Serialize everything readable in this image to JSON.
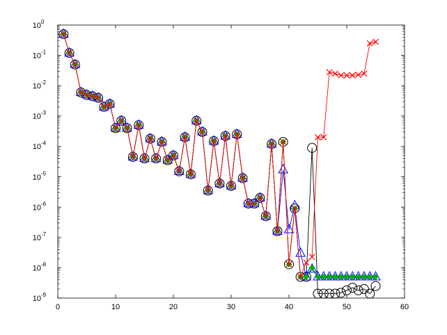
{
  "chart_data": {
    "type": "line",
    "yscale": "log",
    "xlim": [
      0,
      60
    ],
    "ylim": [
      1e-09,
      1
    ],
    "x_ticks": [
      0,
      10,
      20,
      30,
      40,
      50,
      60
    ],
    "x_tick_labels": [
      "0",
      "10",
      "20",
      "30",
      "40",
      "50",
      "60"
    ],
    "y_ticks": [
      1e-09,
      1e-08,
      1e-07,
      1e-06,
      1e-05,
      0.0001,
      0.001,
      0.01,
      0.1,
      1
    ],
    "y_tick_labels": [
      {
        "base": "10",
        "exp": "-9"
      },
      {
        "base": "10",
        "exp": "-8"
      },
      {
        "base": "10",
        "exp": "-7"
      },
      {
        "base": "10",
        "exp": "-6"
      },
      {
        "base": "10",
        "exp": "-5"
      },
      {
        "base": "10",
        "exp": "-4"
      },
      {
        "base": "10",
        "exp": "-3"
      },
      {
        "base": "10",
        "exp": "-2"
      },
      {
        "base": "10",
        "exp": "-1"
      },
      {
        "base": "10",
        "exp": "0"
      }
    ],
    "grid": false,
    "legend": "none",
    "series": [
      {
        "marker": "circle",
        "color": "#000000",
        "points": [
          [
            1,
            0.5
          ],
          [
            2,
            0.12
          ],
          [
            3,
            0.05
          ],
          [
            4,
            0.006
          ],
          [
            5,
            0.005
          ],
          [
            6,
            0.0045
          ],
          [
            7,
            0.004
          ],
          [
            8,
            0.002
          ],
          [
            9,
            0.0025
          ],
          [
            10,
            0.0004
          ],
          [
            11,
            0.0007
          ],
          [
            12,
            0.0004
          ],
          [
            13,
            4.5e-05
          ],
          [
            14,
            0.0005
          ],
          [
            15,
            4e-05
          ],
          [
            16,
            0.00018
          ],
          [
            17,
            4e-05
          ],
          [
            18,
            0.00014
          ],
          [
            19,
            3.5e-05
          ],
          [
            20,
            5e-05
          ],
          [
            21,
            1.5e-05
          ],
          [
            22,
            0.0002
          ],
          [
            23,
            1.2e-05
          ],
          [
            24,
            0.0007
          ],
          [
            25,
            0.0003
          ],
          [
            26,
            3.5e-06
          ],
          [
            27,
            0.00015
          ],
          [
            28,
            6e-06
          ],
          [
            29,
            0.00022
          ],
          [
            30,
            5e-06
          ],
          [
            31,
            0.00025
          ],
          [
            32,
            9e-06
          ],
          [
            33,
            1.3e-06
          ],
          [
            34,
            1.3e-06
          ],
          [
            35,
            2e-06
          ],
          [
            36,
            5e-07
          ],
          [
            37,
            0.00012
          ],
          [
            38,
            1.6e-07
          ],
          [
            39,
            0.00014
          ],
          [
            40,
            1.3e-08
          ],
          [
            41,
            9e-07
          ],
          [
            42,
            5e-09
          ],
          [
            43,
            5e-09
          ],
          [
            44,
            9e-05
          ],
          [
            45,
            1.4e-09
          ],
          [
            46,
            1.4e-09
          ],
          [
            47,
            1.4e-09
          ],
          [
            48,
            1.4e-09
          ],
          [
            49,
            1.5e-09
          ],
          [
            50,
            1.8e-09
          ],
          [
            51,
            2.2e-09
          ],
          [
            52,
            1.8e-09
          ],
          [
            53,
            2e-09
          ],
          [
            54,
            1.4e-09
          ],
          [
            55,
            2.5e-09
          ]
        ]
      },
      {
        "marker": "triangle",
        "color": "#0000ff",
        "points": [
          [
            1,
            0.5
          ],
          [
            2,
            0.12
          ],
          [
            3,
            0.05
          ],
          [
            4,
            0.006
          ],
          [
            5,
            0.005
          ],
          [
            6,
            0.0045
          ],
          [
            7,
            0.004
          ],
          [
            8,
            0.002
          ],
          [
            9,
            0.0025
          ],
          [
            10,
            0.0004
          ],
          [
            11,
            0.0007
          ],
          [
            12,
            0.0004
          ],
          [
            13,
            4.5e-05
          ],
          [
            14,
            0.0005
          ],
          [
            15,
            4e-05
          ],
          [
            16,
            0.00018
          ],
          [
            17,
            4e-05
          ],
          [
            18,
            0.00014
          ],
          [
            19,
            3.5e-05
          ],
          [
            20,
            5e-05
          ],
          [
            21,
            1.5e-05
          ],
          [
            22,
            0.0002
          ],
          [
            23,
            1.2e-05
          ],
          [
            24,
            0.0007
          ],
          [
            25,
            0.0003
          ],
          [
            26,
            3.5e-06
          ],
          [
            27,
            0.00015
          ],
          [
            28,
            6e-06
          ],
          [
            29,
            0.00022
          ],
          [
            30,
            5e-06
          ],
          [
            31,
            0.00025
          ],
          [
            32,
            9e-06
          ],
          [
            33,
            1.3e-06
          ],
          [
            34,
            1.3e-06
          ],
          [
            35,
            2e-06
          ],
          [
            36,
            5e-07
          ],
          [
            37,
            0.00012
          ],
          [
            38,
            1.6e-07
          ],
          [
            39,
            1.7e-05
          ],
          [
            40,
            1.8e-07
          ],
          [
            41,
            1.1e-06
          ],
          [
            42,
            3e-08
          ],
          [
            43,
            5e-09
          ],
          [
            44,
            9e-09
          ],
          [
            45,
            5e-09
          ],
          [
            46,
            5e-09
          ],
          [
            47,
            5e-09
          ],
          [
            48,
            5e-09
          ],
          [
            49,
            5e-09
          ],
          [
            50,
            5e-09
          ],
          [
            51,
            5e-09
          ],
          [
            52,
            5e-09
          ],
          [
            53,
            5e-09
          ],
          [
            54,
            5e-09
          ],
          [
            55,
            5e-09
          ]
        ]
      },
      {
        "marker": "diamond",
        "color": "#00b000",
        "points": [
          [
            1,
            0.5
          ],
          [
            2,
            0.12
          ],
          [
            3,
            0.05
          ],
          [
            4,
            0.006
          ],
          [
            5,
            0.005
          ],
          [
            6,
            0.0045
          ],
          [
            7,
            0.004
          ],
          [
            8,
            0.002
          ],
          [
            9,
            0.0025
          ],
          [
            10,
            0.0004
          ],
          [
            11,
            0.0007
          ],
          [
            12,
            0.0004
          ],
          [
            13,
            4.5e-05
          ],
          [
            14,
            0.0005
          ],
          [
            15,
            4e-05
          ],
          [
            16,
            0.00018
          ],
          [
            17,
            4e-05
          ],
          [
            18,
            0.00014
          ],
          [
            19,
            3.5e-05
          ],
          [
            20,
            5e-05
          ],
          [
            21,
            1.5e-05
          ],
          [
            22,
            0.0002
          ],
          [
            23,
            1.2e-05
          ],
          [
            24,
            0.0007
          ],
          [
            25,
            0.0003
          ],
          [
            26,
            3.5e-06
          ],
          [
            27,
            0.00015
          ],
          [
            28,
            6e-06
          ],
          [
            29,
            0.00022
          ],
          [
            30,
            5e-06
          ],
          [
            31,
            0.00025
          ],
          [
            32,
            9e-06
          ],
          [
            33,
            1.3e-06
          ],
          [
            34,
            1.3e-06
          ],
          [
            35,
            2e-06
          ],
          [
            36,
            5e-07
          ],
          [
            37,
            0.00012
          ],
          [
            38,
            1.6e-07
          ],
          [
            39,
            0.00014
          ],
          [
            40,
            1.3e-08
          ],
          [
            41,
            9e-07
          ],
          [
            42,
            5e-09
          ],
          [
            43,
            5e-09
          ],
          [
            44,
            1e-08
          ],
          [
            45,
            5e-09
          ],
          [
            46,
            5e-09
          ],
          [
            47,
            5e-09
          ],
          [
            48,
            5e-09
          ],
          [
            49,
            5e-09
          ],
          [
            50,
            5e-09
          ],
          [
            51,
            5e-09
          ],
          [
            52,
            5e-09
          ],
          [
            53,
            5e-09
          ],
          [
            54,
            5e-09
          ],
          [
            55,
            5e-09
          ]
        ]
      },
      {
        "marker": "x",
        "color": "#ff0000",
        "points": [
          [
            1,
            0.5
          ],
          [
            2,
            0.12
          ],
          [
            3,
            0.05
          ],
          [
            4,
            0.006
          ],
          [
            5,
            0.005
          ],
          [
            6,
            0.0045
          ],
          [
            7,
            0.004
          ],
          [
            8,
            0.002
          ],
          [
            9,
            0.0025
          ],
          [
            10,
            0.0004
          ],
          [
            11,
            0.0007
          ],
          [
            12,
            0.0004
          ],
          [
            13,
            4.5e-05
          ],
          [
            14,
            0.0005
          ],
          [
            15,
            4e-05
          ],
          [
            16,
            0.00018
          ],
          [
            17,
            4e-05
          ],
          [
            18,
            0.00014
          ],
          [
            19,
            3.5e-05
          ],
          [
            20,
            5e-05
          ],
          [
            21,
            1.5e-05
          ],
          [
            22,
            0.0002
          ],
          [
            23,
            1.2e-05
          ],
          [
            24,
            0.0007
          ],
          [
            25,
            0.0003
          ],
          [
            26,
            3.5e-06
          ],
          [
            27,
            0.00015
          ],
          [
            28,
            6e-06
          ],
          [
            29,
            0.00022
          ],
          [
            30,
            5e-06
          ],
          [
            31,
            0.00025
          ],
          [
            32,
            9e-06
          ],
          [
            33,
            1.3e-06
          ],
          [
            34,
            1.3e-06
          ],
          [
            35,
            2e-06
          ],
          [
            36,
            5e-07
          ],
          [
            37,
            0.00012
          ],
          [
            38,
            1.6e-07
          ],
          [
            39,
            0.00014
          ],
          [
            40,
            1.3e-08
          ],
          [
            41,
            9e-07
          ],
          [
            42,
            5e-09
          ],
          [
            43,
            1.5e-08
          ],
          [
            44,
            2.3e-08
          ],
          [
            45,
            0.0002
          ],
          [
            46,
            0.0002
          ],
          [
            47,
            0.028
          ],
          [
            48,
            0.025
          ],
          [
            49,
            0.022
          ],
          [
            50,
            0.022
          ],
          [
            51,
            0.022
          ],
          [
            52,
            0.023
          ],
          [
            53,
            0.025
          ],
          [
            54,
            0.25
          ],
          [
            55,
            0.28
          ]
        ]
      }
    ]
  }
}
